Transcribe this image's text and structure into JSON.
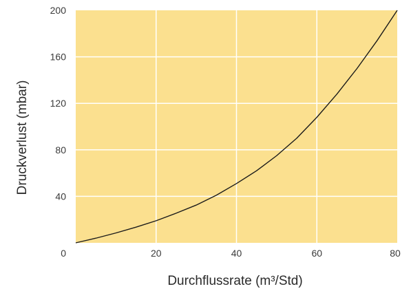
{
  "chart_data": {
    "type": "line",
    "title": "",
    "xlabel": "Durchflussrate (m³/Std)",
    "ylabel": "Druckverlust (mbar)",
    "xlim": [
      0,
      80
    ],
    "ylim": [
      0,
      200
    ],
    "x_ticks": [
      0,
      20,
      40,
      60,
      80
    ],
    "y_ticks": [
      0,
      40,
      80,
      120,
      160,
      200
    ],
    "x_tick_labels": [
      "",
      "20",
      "40",
      "60",
      "80"
    ],
    "y_tick_labels": [
      "0",
      "40",
      "80",
      "120",
      "160",
      "200"
    ],
    "grid": true,
    "legend": "none",
    "colors": {
      "plot_background": "#fbe08f",
      "grid": "#ffffff",
      "line": "#1a1a1a"
    },
    "series": [
      {
        "x": [
          0,
          5,
          10,
          15,
          20,
          25,
          30,
          35,
          40,
          45,
          50,
          55,
          60,
          65,
          70,
          75,
          80
        ],
        "y": [
          0,
          4,
          8.5,
          13.5,
          19,
          25.5,
          32.5,
          41,
          51,
          62,
          75,
          90,
          108,
          128,
          150,
          174,
          200
        ]
      }
    ]
  }
}
